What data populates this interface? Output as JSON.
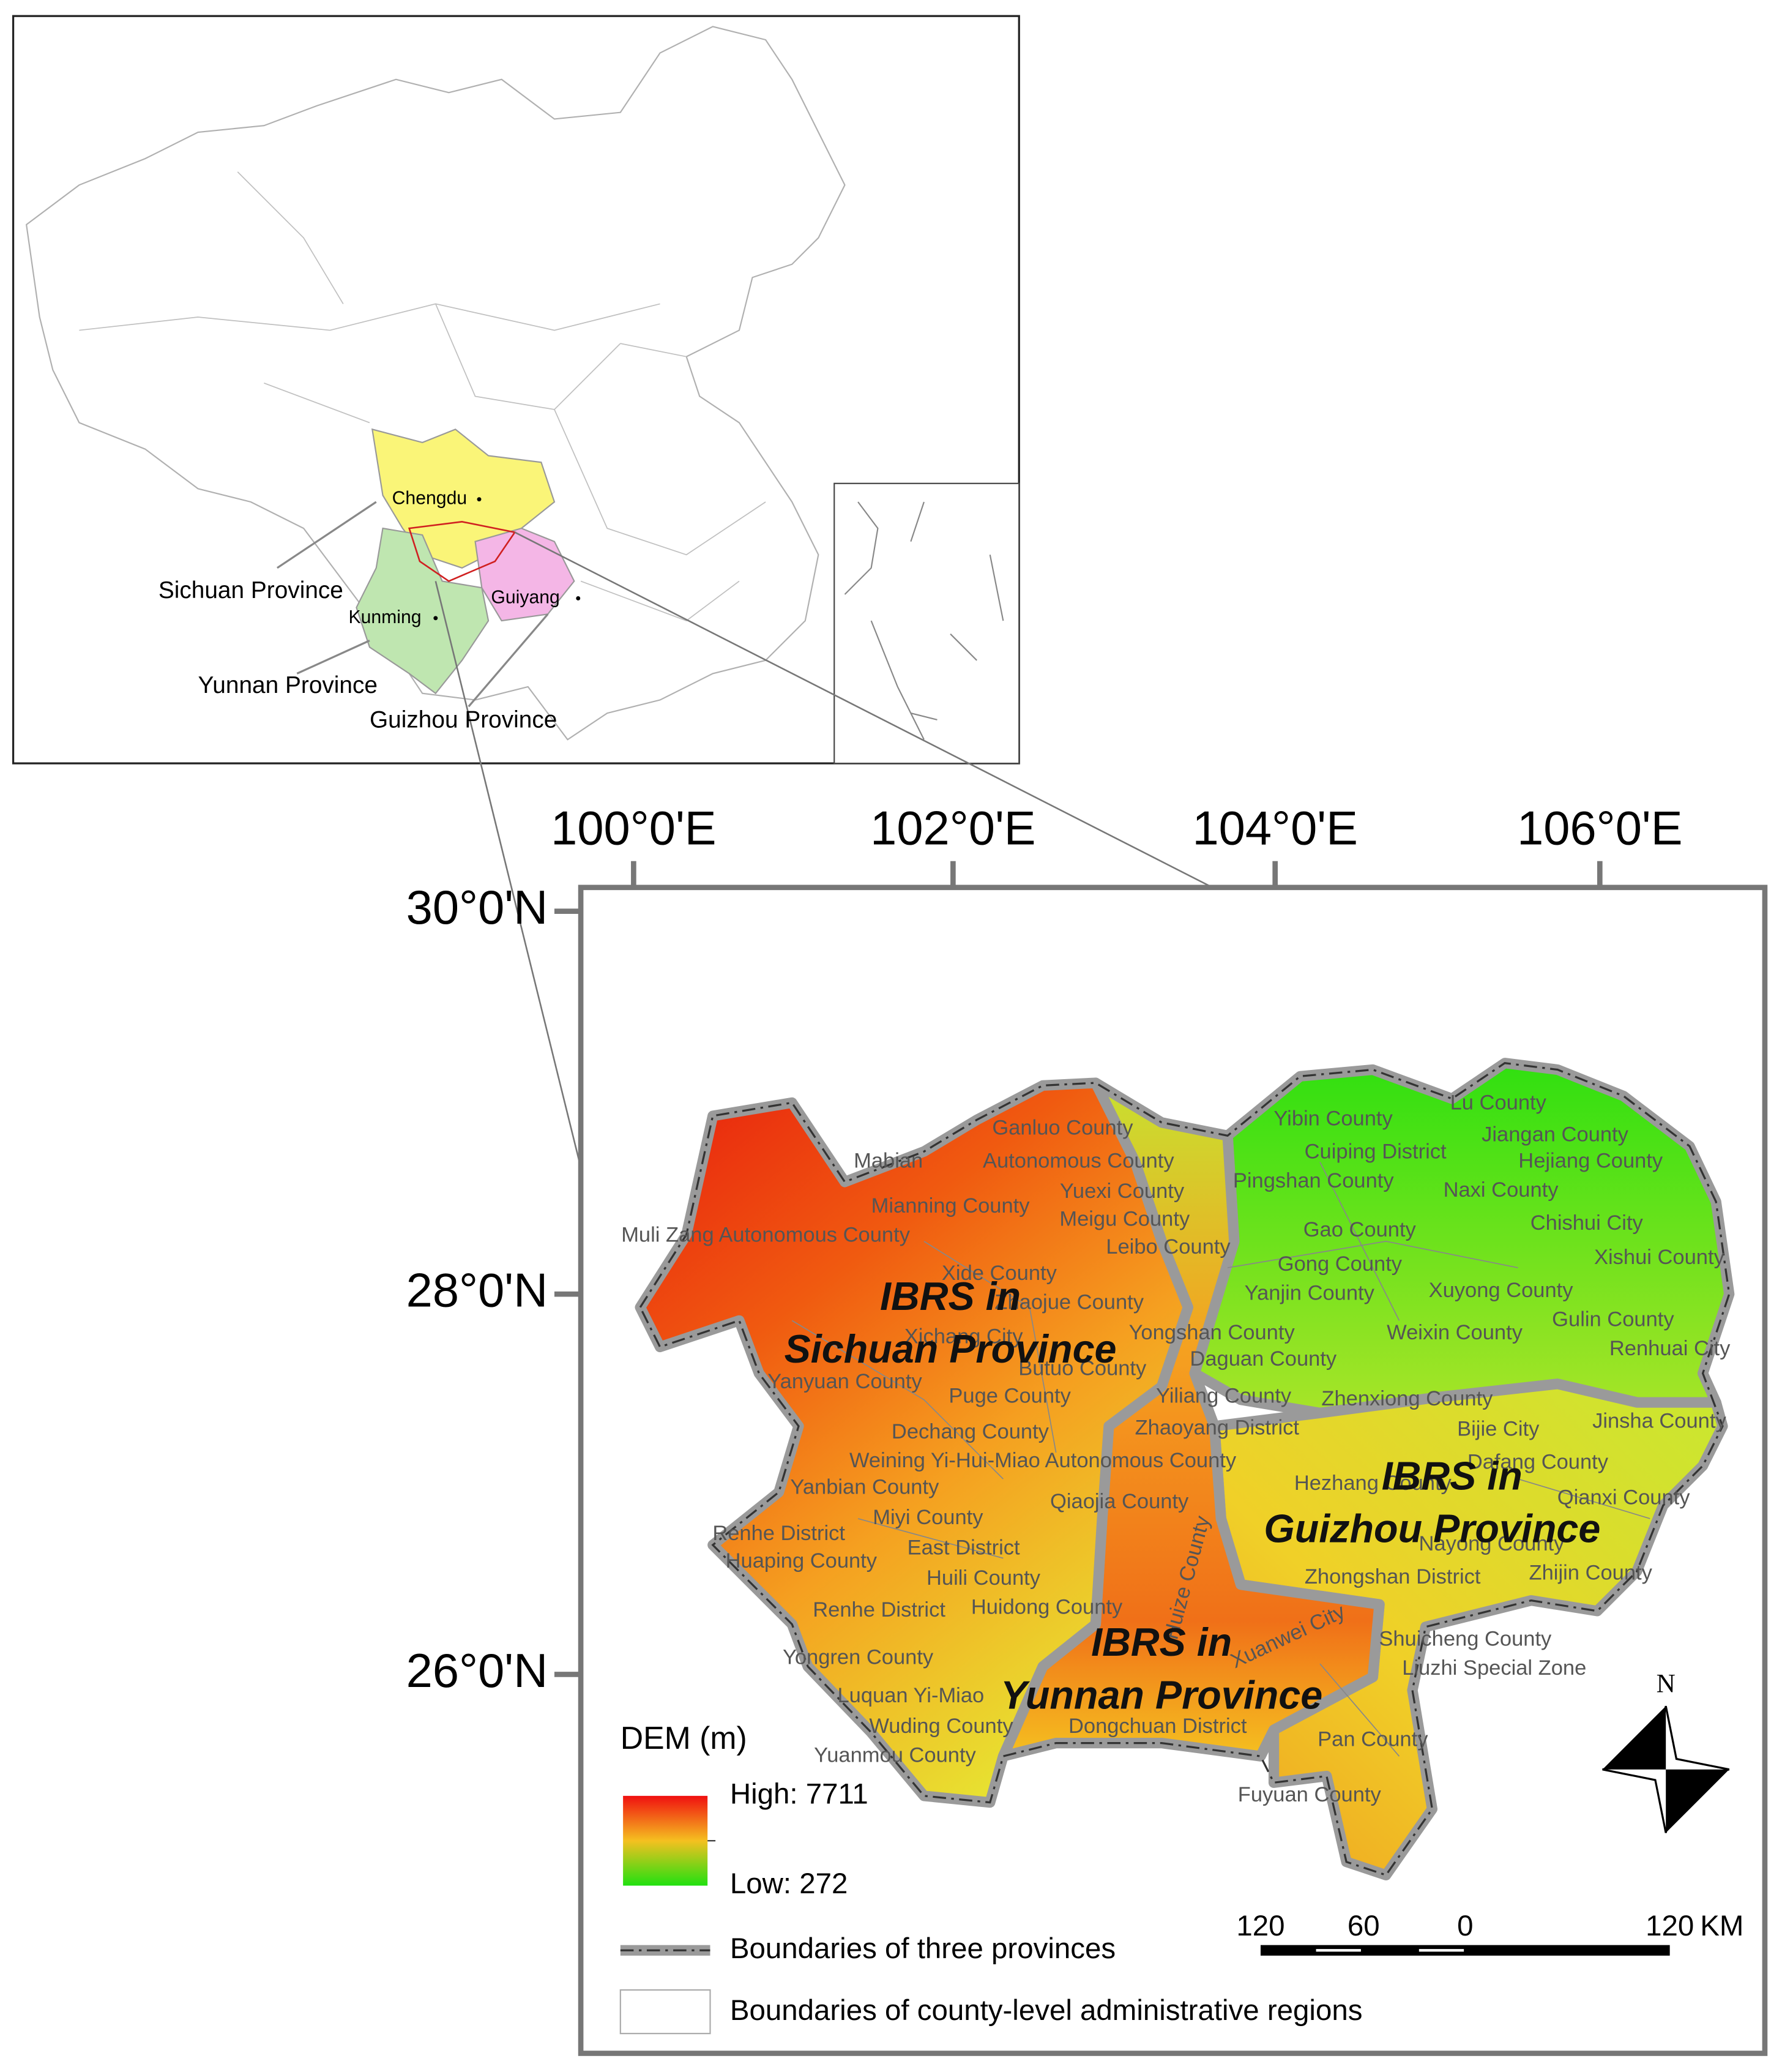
{
  "inset": {
    "cities": [
      "Chengdu",
      "Kunming",
      "Guiyang"
    ],
    "provinces": [
      "Sichuan Province",
      "Yunnan Province",
      "Guizhou Province"
    ]
  },
  "main_map": {
    "longitude_labels": [
      "100°0'E",
      "102°0'E",
      "104°0'E",
      "106°0'E"
    ],
    "latitude_labels": [
      "30°0'N",
      "28°0'N",
      "26°0'N"
    ],
    "region_labels": [
      {
        "lines": [
          "IBRS in",
          "Sichuan Province"
        ]
      },
      {
        "lines": [
          "IBRS in",
          "Guizhou Province"
        ]
      },
      {
        "lines": [
          "IBRS in",
          "Yunnan Province"
        ]
      }
    ],
    "county_labels": [
      "Lu County",
      "Jiangan County",
      "Hejiang County",
      "Yibin County",
      "Cuiping District",
      "Naxi County",
      "Pingshan County",
      "Chishui City",
      "Gao County",
      "Xishui County",
      "Gong County",
      "Yanjin County",
      "Xuyong County",
      "Gulin County",
      "Weixin County",
      "Renhuai City",
      "Yongshan County",
      "Daguan County",
      "Yiliang County",
      "Zhenxiong County",
      "Jinsha County",
      "Bijie City",
      "Zhaoyang District",
      "Dafang County",
      "Hezhang County",
      "Qianxi County",
      "Nayong County",
      "Zhijin County",
      "Zhongshan District",
      "Shuicheng County",
      "Liuzhi Special Zone",
      "Pan County",
      "Fuyuan County",
      "Xuanwei City",
      "Huize County",
      "Ganluo County",
      "Mabian",
      "Autonomous County",
      "Yuexi County",
      "Meigu County",
      "Mianning County",
      "Leibo County",
      "Muli Zang Autonomous County",
      "Xide County",
      "Zhaojue County",
      "Xichang City",
      "Butuo County",
      "Yanyuan County",
      "Puge County",
      "Dechang County",
      "Weining Yi-Hui-Miao Autonomous County",
      "Yanbian County",
      "Qiaojia County",
      "Miyi County",
      "Renhe District",
      "East District",
      "Huaping County",
      "Huili County",
      "Renhe District",
      "Huidong County",
      "Yongren County",
      "Luquan Yi-Miao",
      "Wuding County",
      "Dongchuan District",
      "Yuanmou County"
    ]
  },
  "legend": {
    "title": "DEM (m)",
    "high": "High: 7711",
    "low": "Low: 272",
    "province_boundary": "Boundaries of three provinces",
    "county_boundary": "Boundaries of county-level administrative regions"
  },
  "scale_bar": {
    "labels": [
      "120",
      "60",
      "0",
      "120"
    ],
    "unit": "KM"
  },
  "north_arrow": "N"
}
